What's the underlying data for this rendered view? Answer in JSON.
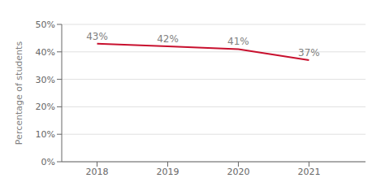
{
  "chart_data": {
    "type": "line",
    "x": [
      2018,
      2019,
      2020,
      2021
    ],
    "values": [
      43,
      42,
      41,
      37
    ],
    "value_labels": [
      "43%",
      "42%",
      "41%",
      "37%"
    ],
    "data_labels": true,
    "color": "#c8102e",
    "ylabel": "Percentage of students",
    "xlim": [
      2017.5,
      2021.8
    ],
    "xticks": [
      2018,
      2019,
      2020,
      2021
    ],
    "ylim": [
      0,
      50
    ],
    "yticks": [
      {
        "value": 0,
        "label": "0%"
      },
      {
        "value": 10,
        "label": "10%"
      },
      {
        "value": 20,
        "label": "20%"
      },
      {
        "value": 30,
        "label": "30%"
      },
      {
        "value": 40,
        "label": "40%"
      },
      {
        "value": 50,
        "label": "50%"
      }
    ],
    "grid": true
  }
}
